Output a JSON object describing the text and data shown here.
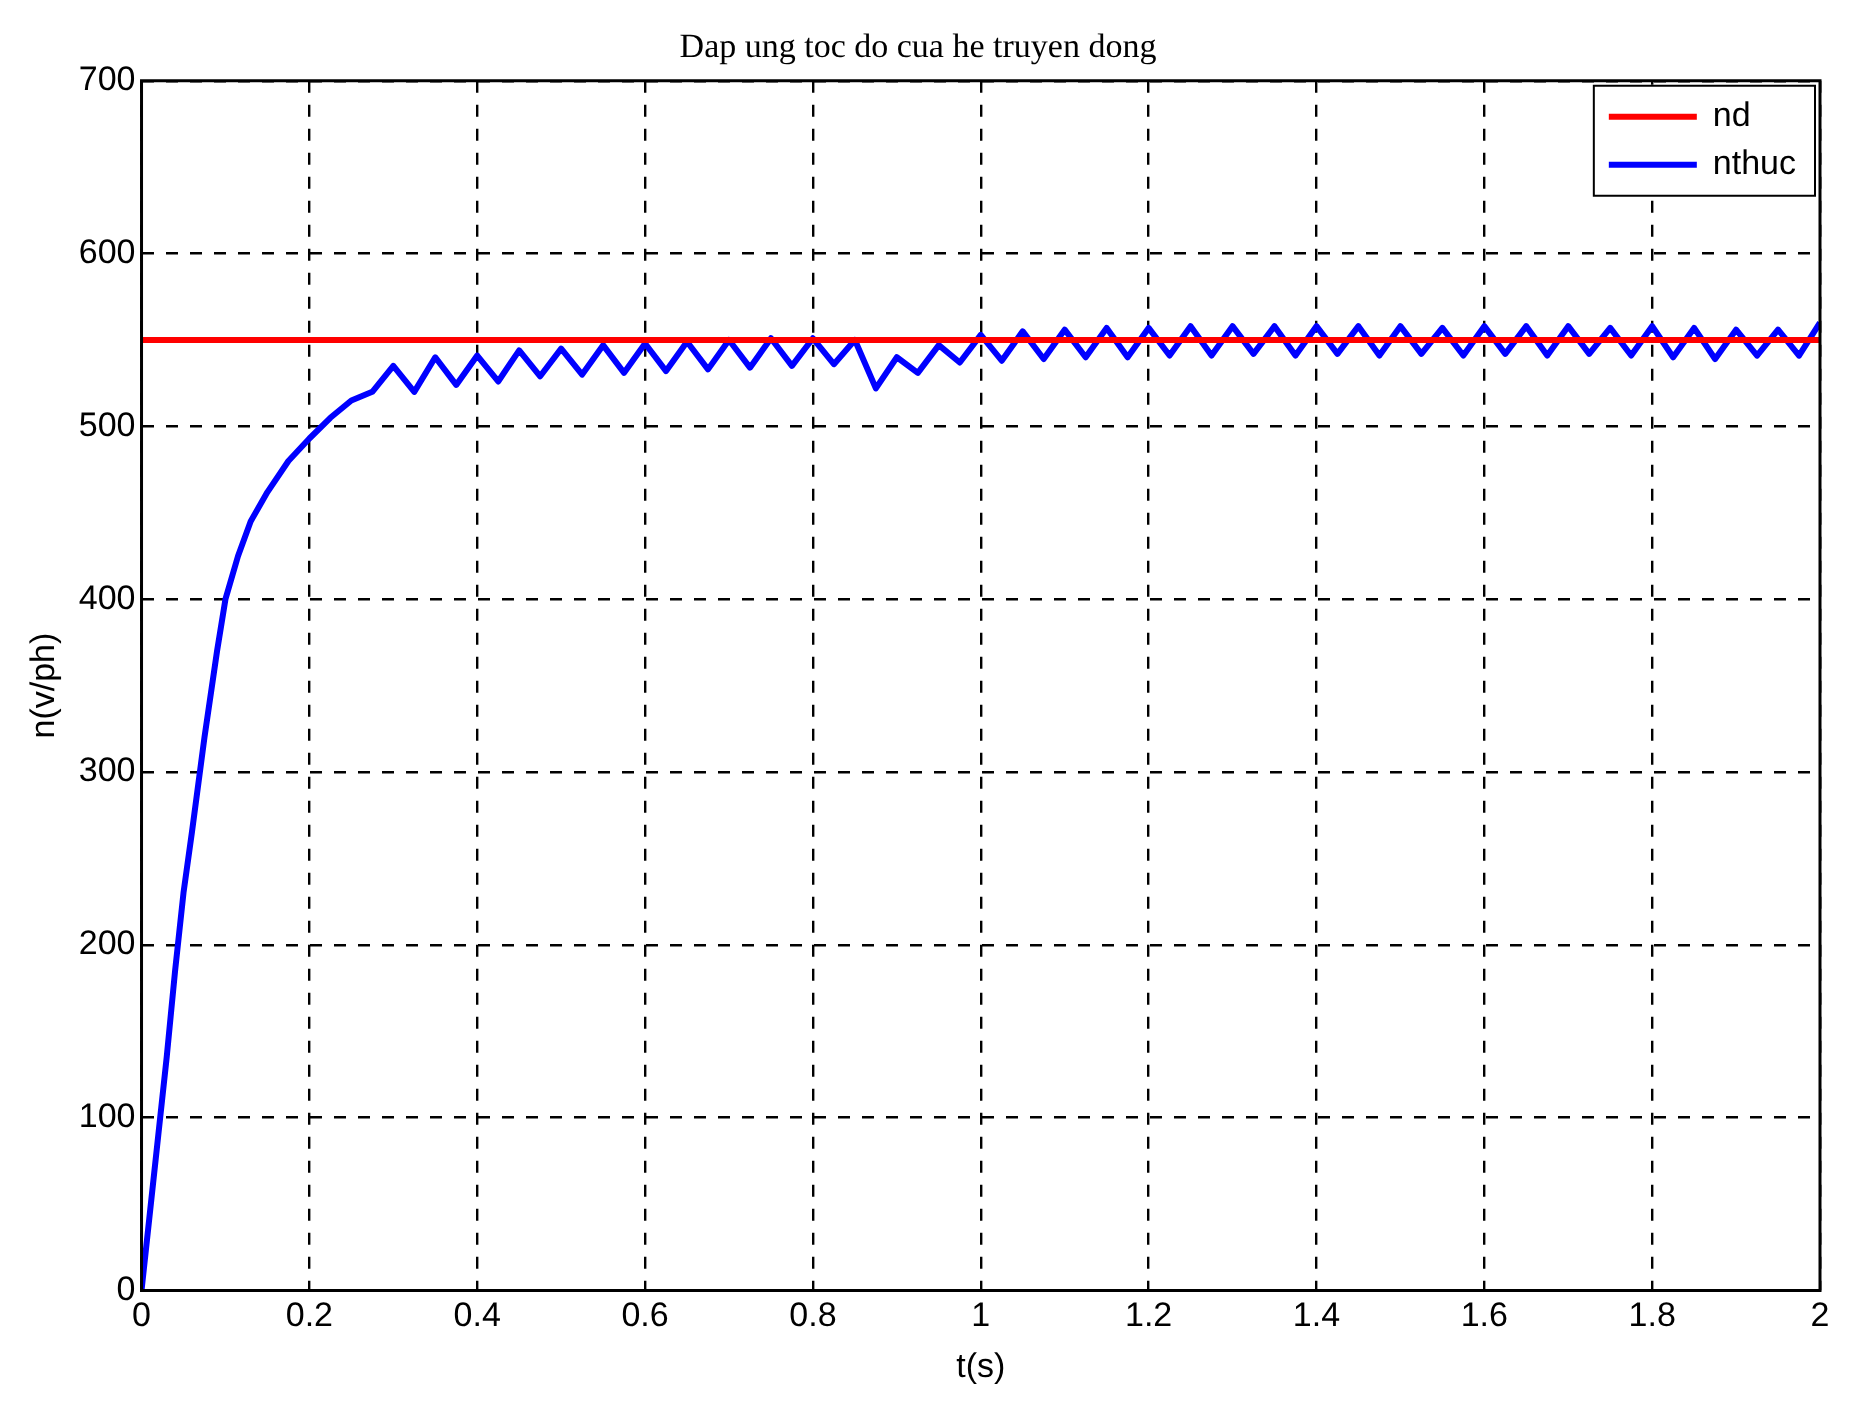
{
  "chart_data": {
    "type": "line",
    "title": "Dap ung toc do cua he truyen dong",
    "xlabel": "t(s)",
    "ylabel": "n(v/ph)",
    "xlim": [
      0,
      2
    ],
    "xticks": [
      0,
      0.2,
      0.4,
      0.6,
      0.8,
      1,
      1.2,
      1.4,
      1.6,
      1.8,
      2
    ],
    "ylim": [
      0,
      700
    ],
    "yticks": [
      0,
      100,
      200,
      300,
      400,
      500,
      600,
      700
    ],
    "grid": true,
    "legend": "top right",
    "line_style": "solid",
    "marker": "none",
    "series": [
      {
        "name": "nd",
        "color": "#ff0000",
        "x": [
          0,
          2
        ],
        "values": [
          550,
          550
        ]
      },
      {
        "name": "nthuc",
        "color": "#0000ff",
        "x": [
          0,
          0.01,
          0.02,
          0.03,
          0.04,
          0.05,
          0.06,
          0.075,
          0.09,
          0.1,
          0.115,
          0.13,
          0.15,
          0.175,
          0.2,
          0.225,
          0.25,
          0.275,
          0.3,
          0.325,
          0.35,
          0.375,
          0.4,
          0.425,
          0.45,
          0.475,
          0.5,
          0.525,
          0.55,
          0.575,
          0.6,
          0.625,
          0.65,
          0.675,
          0.7,
          0.725,
          0.75,
          0.775,
          0.8,
          0.825,
          0.85,
          0.875,
          0.9,
          0.925,
          0.95,
          0.975,
          1,
          1.025,
          1.05,
          1.075,
          1.1,
          1.125,
          1.15,
          1.175,
          1.2,
          1.225,
          1.25,
          1.275,
          1.3,
          1.325,
          1.35,
          1.375,
          1.4,
          1.425,
          1.45,
          1.475,
          1.5,
          1.525,
          1.55,
          1.575,
          1.6,
          1.625,
          1.65,
          1.675,
          1.7,
          1.725,
          1.75,
          1.775,
          1.8,
          1.825,
          1.85,
          1.875,
          1.9,
          1.925,
          1.95,
          1.975,
          2
        ],
        "values": [
          0,
          45,
          90,
          135,
          185,
          230,
          265,
          320,
          370,
          400,
          425,
          445,
          462,
          480,
          493,
          505,
          515,
          520,
          535,
          520,
          540,
          524,
          541,
          526,
          544,
          529,
          545,
          530,
          547,
          531,
          548,
          532,
          549,
          533,
          550,
          534,
          551,
          535,
          551,
          536,
          550,
          522,
          540,
          531,
          547,
          537,
          553,
          538,
          555,
          539,
          556,
          540,
          557,
          540,
          557,
          541,
          558,
          541,
          558,
          542,
          558,
          541,
          558,
          542,
          558,
          541,
          558,
          542,
          557,
          541,
          558,
          542,
          558,
          541,
          558,
          542,
          557,
          541,
          558,
          540,
          557,
          539,
          556,
          541,
          556,
          541,
          560
        ]
      }
    ]
  }
}
